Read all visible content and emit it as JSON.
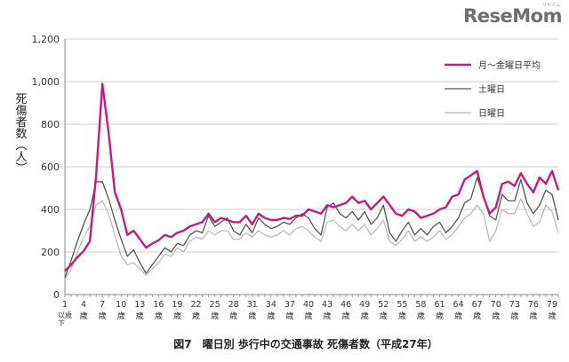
{
  "logo": "ReseMom",
  "logo_sub": "リセマム",
  "chart_data": {
    "type": "line",
    "title": "図7　曜日別 歩行中の交通事故 死傷者数（平成27年）",
    "ylabel": "死傷者数（人）",
    "xlabel": "",
    "ylim": [
      0,
      1200
    ],
    "yticks": [
      0,
      200,
      400,
      600,
      800,
      1000,
      1200
    ],
    "ytick_labels": [
      "0",
      "200",
      "400",
      "600",
      "800",
      "1,000",
      "1,200"
    ],
    "grid": "horizontal",
    "legend_position": "top-right",
    "x_first_label": "1歳以下",
    "xtick_labels": [
      "1歳以下",
      "4歳",
      "7歳",
      "10歳",
      "13歳",
      "16歳",
      "19歳",
      "22歳",
      "25歳",
      "28歳",
      "31歳",
      "34歳",
      "37歳",
      "40歳",
      "43歳",
      "46歳",
      "49歳",
      "52歳",
      "55歳",
      "58歳",
      "61歳",
      "64歳",
      "67歳",
      "70歳",
      "73歳",
      "76歳",
      "79歳"
    ],
    "x": [
      1,
      2,
      3,
      4,
      5,
      6,
      7,
      8,
      9,
      10,
      11,
      12,
      13,
      14,
      15,
      16,
      17,
      18,
      19,
      20,
      21,
      22,
      23,
      24,
      25,
      26,
      27,
      28,
      29,
      30,
      31,
      32,
      33,
      34,
      35,
      36,
      37,
      38,
      39,
      40,
      41,
      42,
      43,
      44,
      45,
      46,
      47,
      48,
      49,
      50,
      51,
      52,
      53,
      54,
      55,
      56,
      57,
      58,
      59,
      60,
      61,
      62,
      63,
      64,
      65,
      66,
      67,
      68,
      69,
      70,
      71,
      72,
      73,
      74,
      75,
      76,
      77,
      78,
      79,
      80
    ],
    "series": [
      {
        "name": "月～金曜日平均",
        "color": "#c8197d",
        "values": [
          110,
          140,
          175,
          205,
          250,
          560,
          990,
          760,
          480,
          400,
          280,
          300,
          260,
          220,
          240,
          255,
          280,
          270,
          290,
          300,
          320,
          330,
          340,
          380,
          340,
          360,
          350,
          340,
          340,
          370,
          330,
          380,
          360,
          350,
          350,
          360,
          355,
          370,
          370,
          400,
          390,
          380,
          420,
          410,
          420,
          430,
          460,
          430,
          440,
          400,
          430,
          460,
          420,
          380,
          370,
          400,
          390,
          360,
          370,
          380,
          400,
          410,
          460,
          470,
          540,
          560,
          580,
          460,
          380,
          410,
          520,
          530,
          510,
          570,
          520,
          480,
          550,
          520,
          580,
          490
        ]
      },
      {
        "name": "土曜日",
        "color": "#555555",
        "values": [
          80,
          160,
          250,
          330,
          400,
          530,
          530,
          450,
          350,
          260,
          180,
          210,
          150,
          100,
          140,
          180,
          220,
          200,
          240,
          230,
          280,
          300,
          290,
          370,
          320,
          340,
          360,
          300,
          280,
          330,
          290,
          360,
          330,
          310,
          320,
          340,
          330,
          360,
          380,
          360,
          310,
          280,
          410,
          430,
          380,
          360,
          390,
          350,
          390,
          330,
          360,
          420,
          290,
          250,
          300,
          340,
          280,
          310,
          280,
          320,
          340,
          290,
          320,
          360,
          430,
          450,
          550,
          460,
          370,
          350,
          470,
          440,
          440,
          540,
          430,
          380,
          420,
          490,
          470,
          350
        ]
      },
      {
        "name": "日曜日",
        "color": "#bbbbbb",
        "values": [
          70,
          120,
          200,
          270,
          320,
          420,
          440,
          380,
          280,
          180,
          140,
          150,
          120,
          90,
          120,
          150,
          190,
          180,
          220,
          200,
          250,
          270,
          260,
          300,
          280,
          300,
          300,
          260,
          260,
          290,
          270,
          300,
          280,
          270,
          280,
          300,
          280,
          310,
          320,
          300,
          270,
          250,
          340,
          350,
          320,
          300,
          330,
          300,
          330,
          280,
          310,
          350,
          250,
          230,
          260,
          300,
          250,
          270,
          250,
          270,
          300,
          260,
          280,
          320,
          360,
          380,
          420,
          380,
          250,
          300,
          400,
          380,
          380,
          450,
          380,
          320,
          340,
          420,
          390,
          290
        ]
      }
    ]
  }
}
